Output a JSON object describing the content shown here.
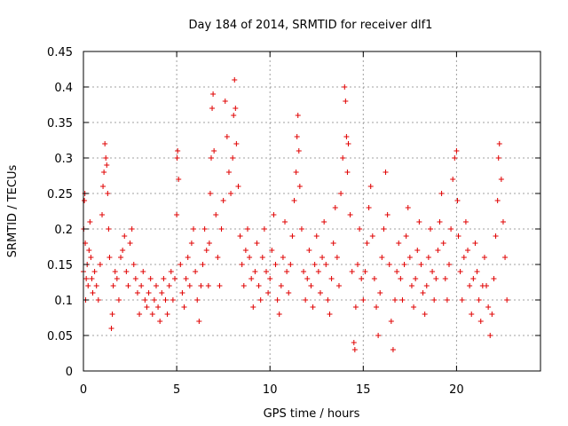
{
  "chart_data": {
    "type": "scatter",
    "title": "Day 184 of 2014, SRMTID for receiver dlf1",
    "xlabel": "GPS time / hours",
    "ylabel": "SRMTID / TECUs",
    "xlim": [
      0,
      24.5
    ],
    "ylim": [
      0,
      0.45
    ],
    "xticks": [
      0,
      5,
      10,
      15,
      20
    ],
    "xtick_labels": [
      "0",
      "5",
      "10",
      "15",
      "20"
    ],
    "yticks": [
      0,
      0.05,
      0.1,
      0.15,
      0.2,
      0.25,
      0.3,
      0.35,
      0.4,
      0.45
    ],
    "ytick_labels": [
      "0",
      "0.05",
      "0.1",
      "0.15",
      "0.2",
      "0.25",
      "0.3",
      "0.35",
      "0.4",
      "0.45"
    ],
    "grid": true,
    "marker": "plus",
    "series": [
      {
        "name": "SRMTID",
        "color": "#e00000",
        "points": [
          [
            0.0,
            0.14
          ],
          [
            0.02,
            0.2
          ],
          [
            0.05,
            0.24
          ],
          [
            0.08,
            0.25
          ],
          [
            0.1,
            0.18
          ],
          [
            0.12,
            0.1
          ],
          [
            0.15,
            0.13
          ],
          [
            0.2,
            0.15
          ],
          [
            0.25,
            0.12
          ],
          [
            0.3,
            0.17
          ],
          [
            0.35,
            0.21
          ],
          [
            0.4,
            0.16
          ],
          [
            0.45,
            0.13
          ],
          [
            0.5,
            0.11
          ],
          [
            0.6,
            0.14
          ],
          [
            0.7,
            0.12
          ],
          [
            0.8,
            0.1
          ],
          [
            0.9,
            0.15
          ],
          [
            1.0,
            0.22
          ],
          [
            1.05,
            0.26
          ],
          [
            1.1,
            0.28
          ],
          [
            1.15,
            0.32
          ],
          [
            1.2,
            0.3
          ],
          [
            1.25,
            0.29
          ],
          [
            1.3,
            0.25
          ],
          [
            1.35,
            0.2
          ],
          [
            1.4,
            0.16
          ],
          [
            1.5,
            0.06
          ],
          [
            1.55,
            0.08
          ],
          [
            1.6,
            0.12
          ],
          [
            1.7,
            0.14
          ],
          [
            1.8,
            0.13
          ],
          [
            1.9,
            0.1
          ],
          [
            2.0,
            0.16
          ],
          [
            2.1,
            0.17
          ],
          [
            2.2,
            0.19
          ],
          [
            2.3,
            0.14
          ],
          [
            2.4,
            0.12
          ],
          [
            2.5,
            0.18
          ],
          [
            2.6,
            0.2
          ],
          [
            2.7,
            0.15
          ],
          [
            2.8,
            0.13
          ],
          [
            2.9,
            0.11
          ],
          [
            3.0,
            0.08
          ],
          [
            3.1,
            0.12
          ],
          [
            3.2,
            0.14
          ],
          [
            3.3,
            0.1
          ],
          [
            3.4,
            0.09
          ],
          [
            3.5,
            0.11
          ],
          [
            3.6,
            0.13
          ],
          [
            3.7,
            0.08
          ],
          [
            3.8,
            0.1
          ],
          [
            3.9,
            0.12
          ],
          [
            4.0,
            0.09
          ],
          [
            4.1,
            0.07
          ],
          [
            4.2,
            0.11
          ],
          [
            4.3,
            0.13
          ],
          [
            4.4,
            0.1
          ],
          [
            4.5,
            0.08
          ],
          [
            4.6,
            0.12
          ],
          [
            4.7,
            0.14
          ],
          [
            4.8,
            0.1
          ],
          [
            4.9,
            0.13
          ],
          [
            5.0,
            0.22
          ],
          [
            5.02,
            0.3
          ],
          [
            5.05,
            0.31
          ],
          [
            5.1,
            0.27
          ],
          [
            5.2,
            0.15
          ],
          [
            5.3,
            0.11
          ],
          [
            5.4,
            0.09
          ],
          [
            5.5,
            0.13
          ],
          [
            5.6,
            0.16
          ],
          [
            5.7,
            0.12
          ],
          [
            5.8,
            0.18
          ],
          [
            5.9,
            0.2
          ],
          [
            6.0,
            0.14
          ],
          [
            6.1,
            0.1
          ],
          [
            6.2,
            0.07
          ],
          [
            6.3,
            0.12
          ],
          [
            6.4,
            0.15
          ],
          [
            6.5,
            0.2
          ],
          [
            6.6,
            0.17
          ],
          [
            6.7,
            0.12
          ],
          [
            6.75,
            0.18
          ],
          [
            6.8,
            0.25
          ],
          [
            6.85,
            0.3
          ],
          [
            6.9,
            0.37
          ],
          [
            6.95,
            0.39
          ],
          [
            7.0,
            0.31
          ],
          [
            7.1,
            0.22
          ],
          [
            7.2,
            0.16
          ],
          [
            7.3,
            0.12
          ],
          [
            7.4,
            0.2
          ],
          [
            7.5,
            0.24
          ],
          [
            7.6,
            0.38
          ],
          [
            7.7,
            0.33
          ],
          [
            7.8,
            0.28
          ],
          [
            7.9,
            0.25
          ],
          [
            8.0,
            0.3
          ],
          [
            8.05,
            0.36
          ],
          [
            8.1,
            0.41
          ],
          [
            8.15,
            0.37
          ],
          [
            8.2,
            0.32
          ],
          [
            8.3,
            0.26
          ],
          [
            8.4,
            0.19
          ],
          [
            8.5,
            0.15
          ],
          [
            8.6,
            0.12
          ],
          [
            8.7,
            0.17
          ],
          [
            8.8,
            0.2
          ],
          [
            8.9,
            0.16
          ],
          [
            9.0,
            0.13
          ],
          [
            9.1,
            0.09
          ],
          [
            9.2,
            0.14
          ],
          [
            9.3,
            0.18
          ],
          [
            9.4,
            0.12
          ],
          [
            9.5,
            0.1
          ],
          [
            9.6,
            0.16
          ],
          [
            9.7,
            0.2
          ],
          [
            9.8,
            0.14
          ],
          [
            9.9,
            0.11
          ],
          [
            10.0,
            0.13
          ],
          [
            10.1,
            0.17
          ],
          [
            10.2,
            0.22
          ],
          [
            10.3,
            0.15
          ],
          [
            10.4,
            0.1
          ],
          [
            10.5,
            0.08
          ],
          [
            10.6,
            0.12
          ],
          [
            10.7,
            0.16
          ],
          [
            10.8,
            0.21
          ],
          [
            10.9,
            0.14
          ],
          [
            11.0,
            0.11
          ],
          [
            11.1,
            0.15
          ],
          [
            11.2,
            0.19
          ],
          [
            11.3,
            0.24
          ],
          [
            11.4,
            0.28
          ],
          [
            11.45,
            0.33
          ],
          [
            11.5,
            0.36
          ],
          [
            11.55,
            0.31
          ],
          [
            11.6,
            0.26
          ],
          [
            11.7,
            0.2
          ],
          [
            11.8,
            0.14
          ],
          [
            11.9,
            0.1
          ],
          [
            12.0,
            0.13
          ],
          [
            12.1,
            0.17
          ],
          [
            12.2,
            0.12
          ],
          [
            12.3,
            0.09
          ],
          [
            12.4,
            0.15
          ],
          [
            12.5,
            0.19
          ],
          [
            12.6,
            0.14
          ],
          [
            12.7,
            0.11
          ],
          [
            12.8,
            0.16
          ],
          [
            12.9,
            0.21
          ],
          [
            13.0,
            0.15
          ],
          [
            13.1,
            0.1
          ],
          [
            13.2,
            0.08
          ],
          [
            13.3,
            0.13
          ],
          [
            13.4,
            0.18
          ],
          [
            13.5,
            0.23
          ],
          [
            13.6,
            0.16
          ],
          [
            13.7,
            0.12
          ],
          [
            13.8,
            0.25
          ],
          [
            13.9,
            0.3
          ],
          [
            14.0,
            0.4
          ],
          [
            14.05,
            0.38
          ],
          [
            14.1,
            0.33
          ],
          [
            14.15,
            0.28
          ],
          [
            14.2,
            0.32
          ],
          [
            14.3,
            0.22
          ],
          [
            14.4,
            0.14
          ],
          [
            14.5,
            0.04
          ],
          [
            14.55,
            0.03
          ],
          [
            14.6,
            0.09
          ],
          [
            14.7,
            0.15
          ],
          [
            14.8,
            0.2
          ],
          [
            14.9,
            0.13
          ],
          [
            15.0,
            0.1
          ],
          [
            15.1,
            0.14
          ],
          [
            15.2,
            0.18
          ],
          [
            15.3,
            0.23
          ],
          [
            15.4,
            0.26
          ],
          [
            15.5,
            0.19
          ],
          [
            15.6,
            0.13
          ],
          [
            15.7,
            0.09
          ],
          [
            15.8,
            0.05
          ],
          [
            15.9,
            0.11
          ],
          [
            16.0,
            0.16
          ],
          [
            16.1,
            0.2
          ],
          [
            16.2,
            0.28
          ],
          [
            16.3,
            0.22
          ],
          [
            16.4,
            0.15
          ],
          [
            16.5,
            0.07
          ],
          [
            16.6,
            0.03
          ],
          [
            16.7,
            0.1
          ],
          [
            16.8,
            0.14
          ],
          [
            16.9,
            0.18
          ],
          [
            17.0,
            0.13
          ],
          [
            17.1,
            0.1
          ],
          [
            17.2,
            0.15
          ],
          [
            17.3,
            0.19
          ],
          [
            17.4,
            0.23
          ],
          [
            17.5,
            0.16
          ],
          [
            17.6,
            0.12
          ],
          [
            17.7,
            0.09
          ],
          [
            17.8,
            0.13
          ],
          [
            17.9,
            0.17
          ],
          [
            18.0,
            0.21
          ],
          [
            18.1,
            0.15
          ],
          [
            18.2,
            0.11
          ],
          [
            18.3,
            0.08
          ],
          [
            18.4,
            0.12
          ],
          [
            18.5,
            0.16
          ],
          [
            18.6,
            0.2
          ],
          [
            18.7,
            0.14
          ],
          [
            18.8,
            0.1
          ],
          [
            18.9,
            0.13
          ],
          [
            19.0,
            0.17
          ],
          [
            19.1,
            0.21
          ],
          [
            19.2,
            0.25
          ],
          [
            19.3,
            0.18
          ],
          [
            19.4,
            0.13
          ],
          [
            19.5,
            0.1
          ],
          [
            19.6,
            0.15
          ],
          [
            19.7,
            0.2
          ],
          [
            19.8,
            0.27
          ],
          [
            19.9,
            0.3
          ],
          [
            20.0,
            0.31
          ],
          [
            20.05,
            0.24
          ],
          [
            20.1,
            0.19
          ],
          [
            20.2,
            0.14
          ],
          [
            20.3,
            0.1
          ],
          [
            20.4,
            0.16
          ],
          [
            20.5,
            0.21
          ],
          [
            20.6,
            0.17
          ],
          [
            20.7,
            0.12
          ],
          [
            20.8,
            0.08
          ],
          [
            20.9,
            0.13
          ],
          [
            21.0,
            0.18
          ],
          [
            21.1,
            0.14
          ],
          [
            21.2,
            0.1
          ],
          [
            21.3,
            0.07
          ],
          [
            21.4,
            0.12
          ],
          [
            21.5,
            0.16
          ],
          [
            21.6,
            0.12
          ],
          [
            21.7,
            0.09
          ],
          [
            21.8,
            0.05
          ],
          [
            21.9,
            0.08
          ],
          [
            22.0,
            0.13
          ],
          [
            22.1,
            0.19
          ],
          [
            22.2,
            0.24
          ],
          [
            22.25,
            0.3
          ],
          [
            22.3,
            0.32
          ],
          [
            22.4,
            0.27
          ],
          [
            22.5,
            0.21
          ],
          [
            22.6,
            0.16
          ],
          [
            22.7,
            0.1
          ]
        ]
      }
    ]
  }
}
